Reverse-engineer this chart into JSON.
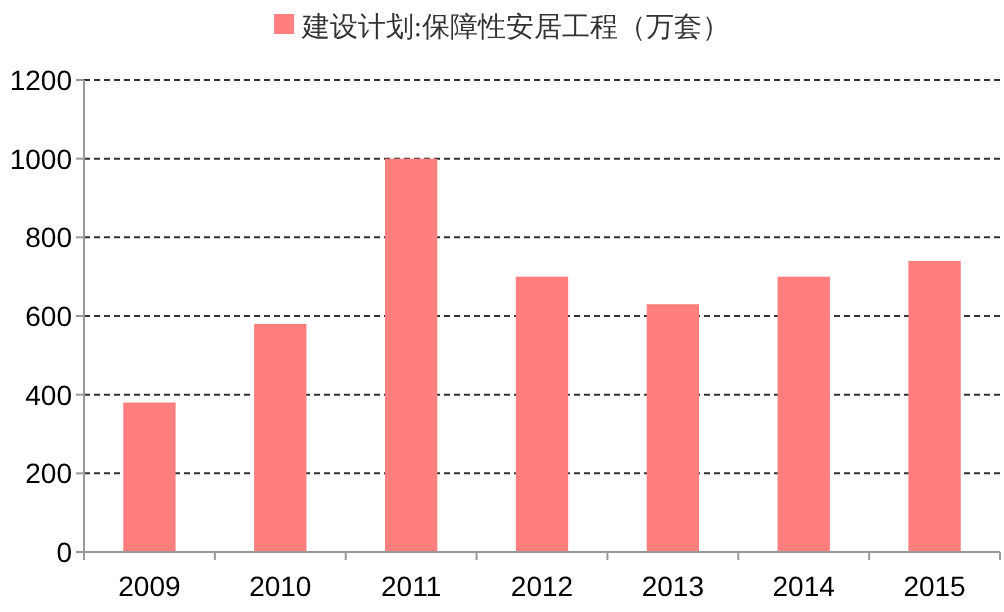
{
  "chart_data": {
    "type": "bar",
    "categories": [
      "2009",
      "2010",
      "2011",
      "2012",
      "2013",
      "2014",
      "2015"
    ],
    "series": [
      {
        "name": "建设计划:保障性安居工程（万套）",
        "color": "#ff7f7f",
        "values": [
          380,
          580,
          1000,
          700,
          630,
          700,
          740
        ]
      }
    ],
    "ylim": [
      0,
      1200
    ],
    "yticks": [
      0,
      200,
      400,
      600,
      800,
      1000,
      1200
    ],
    "grid": "y",
    "legend": "top"
  }
}
